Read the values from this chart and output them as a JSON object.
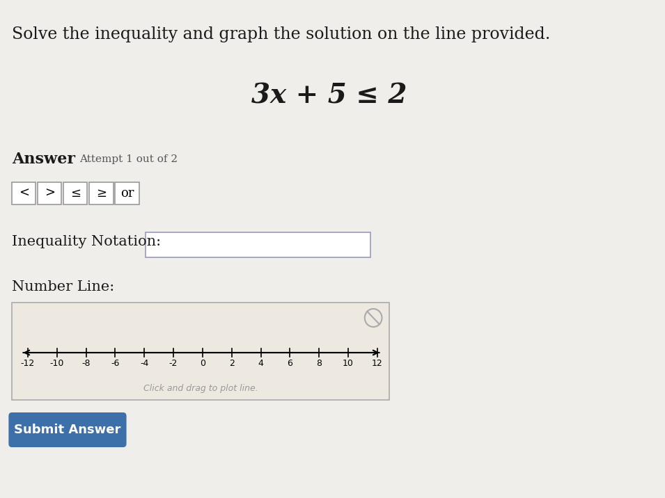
{
  "bg_color": "#f0eeeb",
  "title_text": "Solve the inequality and graph the solution on the line provided.",
  "equation_text": "3x + 5 ≤ 2",
  "answer_bold": "Answer",
  "attempt_text": "Attempt 1 out of 2",
  "buttons": [
    "<",
    ">",
    "≤",
    "≥",
    "or"
  ],
  "inequality_label": "Inequality Notation:",
  "number_line_label": "Number Line:",
  "click_drag_text": "Click and drag to plot line.",
  "submit_text": "Submit Answer",
  "submit_bg": "#3d6fa8",
  "number_line_ticks": [
    -12,
    -10,
    -8,
    -6,
    -4,
    -2,
    0,
    2,
    4,
    6,
    8,
    10,
    12
  ],
  "number_line_bg": "#ede8e0",
  "number_line_border": "#aaaaaa",
  "input_box_color": "#ffffff",
  "input_box_border": "#9999bb",
  "button_border": "#999999",
  "title_color": "#1a1a1a",
  "equation_color": "#1a1a1a",
  "label_color": "#1a1a1a",
  "circle_color": "#aaaaaa"
}
